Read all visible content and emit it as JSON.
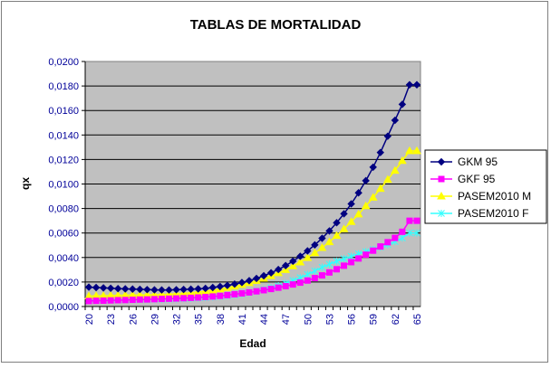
{
  "chart_data": {
    "type": "line",
    "title": "TABLAS DE MORTALIDAD",
    "xlabel": "Edad",
    "ylabel": "qx",
    "ylim": [
      0,
      0.02
    ],
    "yticks": [
      "0,0000",
      "0,0020",
      "0,0040",
      "0,0060",
      "0,0080",
      "0,0100",
      "0,0120",
      "0,0140",
      "0,0160",
      "0,0180",
      "0,0200"
    ],
    "x": [
      20,
      21,
      22,
      23,
      24,
      25,
      26,
      27,
      28,
      29,
      30,
      31,
      32,
      33,
      34,
      35,
      36,
      37,
      38,
      39,
      40,
      41,
      42,
      43,
      44,
      45,
      46,
      47,
      48,
      49,
      50,
      51,
      52,
      53,
      54,
      55,
      56,
      57,
      58,
      59,
      60,
      61,
      62,
      63,
      64,
      65
    ],
    "xtick_labels": [
      "20",
      "23",
      "26",
      "29",
      "32",
      "35",
      "38",
      "41",
      "44",
      "47",
      "50",
      "53",
      "56",
      "59",
      "62",
      "65"
    ],
    "grid": true,
    "plot_background": "#c0c0c0",
    "legend_position": "right",
    "series": [
      {
        "name": "GKM 95",
        "color": "#000080",
        "marker": "diamond",
        "values": [
          0.00158,
          0.00155,
          0.00152,
          0.00149,
          0.00146,
          0.00144,
          0.00142,
          0.0014,
          0.00138,
          0.00136,
          0.00135,
          0.00135,
          0.00137,
          0.00139,
          0.00141,
          0.00144,
          0.00148,
          0.00155,
          0.00163,
          0.00172,
          0.00183,
          0.00196,
          0.00211,
          0.00229,
          0.00251,
          0.00275,
          0.00302,
          0.00334,
          0.0037,
          0.0041,
          0.00454,
          0.00503,
          0.00557,
          0.00617,
          0.00684,
          0.00757,
          0.00838,
          0.00928,
          0.01027,
          0.01137,
          0.01257,
          0.0139,
          0.0152,
          0.0165,
          0.0181,
          0.0181
        ]
      },
      {
        "name": "GKF 95",
        "color": "#ff00ff",
        "marker": "square",
        "values": [
          0.00045,
          0.00047,
          0.00048,
          0.0005,
          0.00052,
          0.00053,
          0.00055,
          0.00057,
          0.00058,
          0.0006,
          0.00062,
          0.00064,
          0.00066,
          0.00068,
          0.00071,
          0.00074,
          0.00078,
          0.00082,
          0.00087,
          0.00093,
          0.001,
          0.00107,
          0.00115,
          0.00124,
          0.00133,
          0.00143,
          0.00154,
          0.00166,
          0.0018,
          0.00195,
          0.00212,
          0.00232,
          0.00254,
          0.00278,
          0.00304,
          0.00333,
          0.00362,
          0.00392,
          0.00423,
          0.00456,
          0.0049,
          0.00525,
          0.0056,
          0.0061,
          0.007,
          0.007
        ]
      },
      {
        "name": "PASEM2010 M",
        "color": "#ffff00",
        "marker": "triangle",
        "values": [
          0.00085,
          0.00087,
          0.00088,
          0.0009,
          0.00091,
          0.00092,
          0.00093,
          0.00094,
          0.00095,
          0.00096,
          0.00098,
          0.001,
          0.00103,
          0.00107,
          0.00112,
          0.00118,
          0.00125,
          0.00133,
          0.00142,
          0.00153,
          0.00165,
          0.00178,
          0.00193,
          0.0021,
          0.00229,
          0.0025,
          0.00274,
          0.003,
          0.0033,
          0.00362,
          0.00398,
          0.00437,
          0.0048,
          0.00527,
          0.00578,
          0.00633,
          0.00692,
          0.00754,
          0.0082,
          0.0089,
          0.00962,
          0.01036,
          0.0111,
          0.0119,
          0.0127,
          0.0127
        ]
      },
      {
        "name": "PASEM2010 F",
        "color": "#33ffff",
        "marker": "star",
        "values": [
          0.00055,
          0.00055,
          0.00056,
          0.00056,
          0.00057,
          0.00057,
          0.00058,
          0.00058,
          0.00059,
          0.0006,
          0.00061,
          0.00062,
          0.00064,
          0.00066,
          0.00068,
          0.00071,
          0.00074,
          0.00078,
          0.00083,
          0.00089,
          0.00096,
          0.00104,
          0.00114,
          0.00125,
          0.00138,
          0.00153,
          0.0017,
          0.00189,
          0.00211,
          0.00235,
          0.00262,
          0.0029,
          0.0032,
          0.00345,
          0.0037,
          0.0039,
          0.0041,
          0.0043,
          0.00448,
          0.00465,
          0.00485,
          0.00505,
          0.0053,
          0.0056,
          0.006,
          0.006
        ]
      }
    ]
  }
}
